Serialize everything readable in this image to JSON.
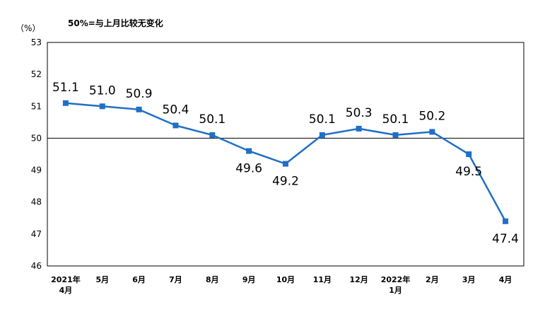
{
  "chart_data": {
    "type": "line",
    "unit_label": "（%）",
    "note": "50%=与上月比较无变化",
    "categories": [
      [
        "2021年",
        "4月"
      ],
      [
        "5月"
      ],
      [
        "6月"
      ],
      [
        "7月"
      ],
      [
        "8月"
      ],
      [
        "9月"
      ],
      [
        "10月"
      ],
      [
        "11月"
      ],
      [
        "12月"
      ],
      [
        "2022年",
        "1月"
      ],
      [
        "2月"
      ],
      [
        "3月"
      ],
      [
        "4月"
      ]
    ],
    "series": [
      {
        "values": [
          51.1,
          51.0,
          50.9,
          50.4,
          50.1,
          49.6,
          49.2,
          50.1,
          50.3,
          50.1,
          50.2,
          49.5,
          47.4
        ],
        "labels": [
          "51.1",
          "51.0",
          "50.9",
          "50.4",
          "50.1",
          "49.6",
          "49.2",
          "50.1",
          "50.3",
          "50.1",
          "50.2",
          "49.5",
          "47.4"
        ],
        "label_position": [
          "above",
          "above",
          "above",
          "above",
          "above",
          "below",
          "below",
          "above",
          "above",
          "above",
          "above",
          "below",
          "below"
        ],
        "color": "#1f6fc6"
      }
    ],
    "ylim": [
      46,
      53
    ],
    "yticks": [
      46,
      47,
      48,
      49,
      50,
      51,
      52,
      53
    ],
    "reference_line": 50,
    "grid": false,
    "legend": "none"
  }
}
